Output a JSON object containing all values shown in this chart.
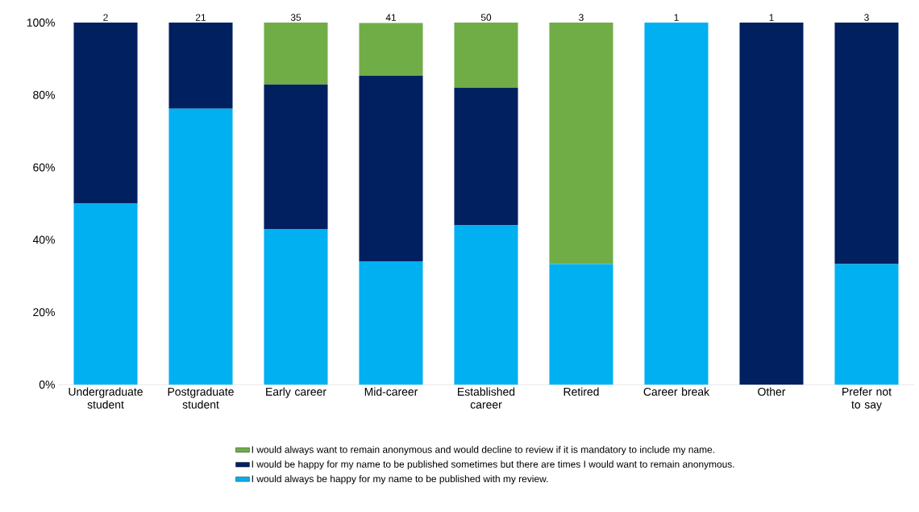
{
  "chart_data": {
    "type": "bar",
    "stacked": true,
    "categories": [
      "Undergraduate student",
      "Postgraduate student",
      "Early career",
      "Mid-career",
      "Established career",
      "Retired",
      "Career break",
      "Other",
      "Prefer not to say"
    ],
    "series": [
      {
        "name": "I would always be happy for my name to be published with my review.",
        "color": "#00b0f0",
        "values": [
          50.0,
          76.2,
          42.9,
          34.1,
          44.0,
          33.3,
          100.0,
          0.0,
          33.3
        ]
      },
      {
        "name": "I would be happy for my name to be published sometimes but there are times I would want to remain anonymous.",
        "color": "#002060",
        "values": [
          50.0,
          23.8,
          40.0,
          51.2,
          38.0,
          0.0,
          0.0,
          100.0,
          66.7
        ]
      },
      {
        "name": "I would always want to remain anonymous and would decline to review if it is mandatory to include my name.",
        "color": "#70ad47",
        "values": [
          0.0,
          0.0,
          17.1,
          14.6,
          18.0,
          66.7,
          0.0,
          0.0,
          0.0
        ]
      }
    ],
    "ylim": [
      0,
      100
    ],
    "yticks": [
      {
        "value": 0,
        "label": "0%"
      },
      {
        "value": 20,
        "label": "20%"
      },
      {
        "value": 40,
        "label": "40%"
      },
      {
        "value": 60,
        "label": "60%"
      },
      {
        "value": 80,
        "label": "80%"
      },
      {
        "value": 100,
        "label": "100%"
      }
    ],
    "annotations": [
      {
        "text": "2",
        "x": "Undergraduate student",
        "y": 100
      },
      {
        "text": "21",
        "x": "Postgraduate student",
        "y": 100
      },
      {
        "text": "35",
        "x": "Early career",
        "y": 100
      },
      {
        "text": "41",
        "x": "Mid-career",
        "y": 100
      },
      {
        "text": "50",
        "x": "Established career",
        "y": 100
      },
      {
        "text": "3",
        "x": "Retired",
        "y": 100
      },
      {
        "text": "1",
        "x": "Career break",
        "y": 100
      },
      {
        "text": "1",
        "x": "Other",
        "y": 100
      },
      {
        "text": "3",
        "x": "Prefer not to say",
        "y": 100
      }
    ],
    "legend": "bottom",
    "grid": false
  }
}
